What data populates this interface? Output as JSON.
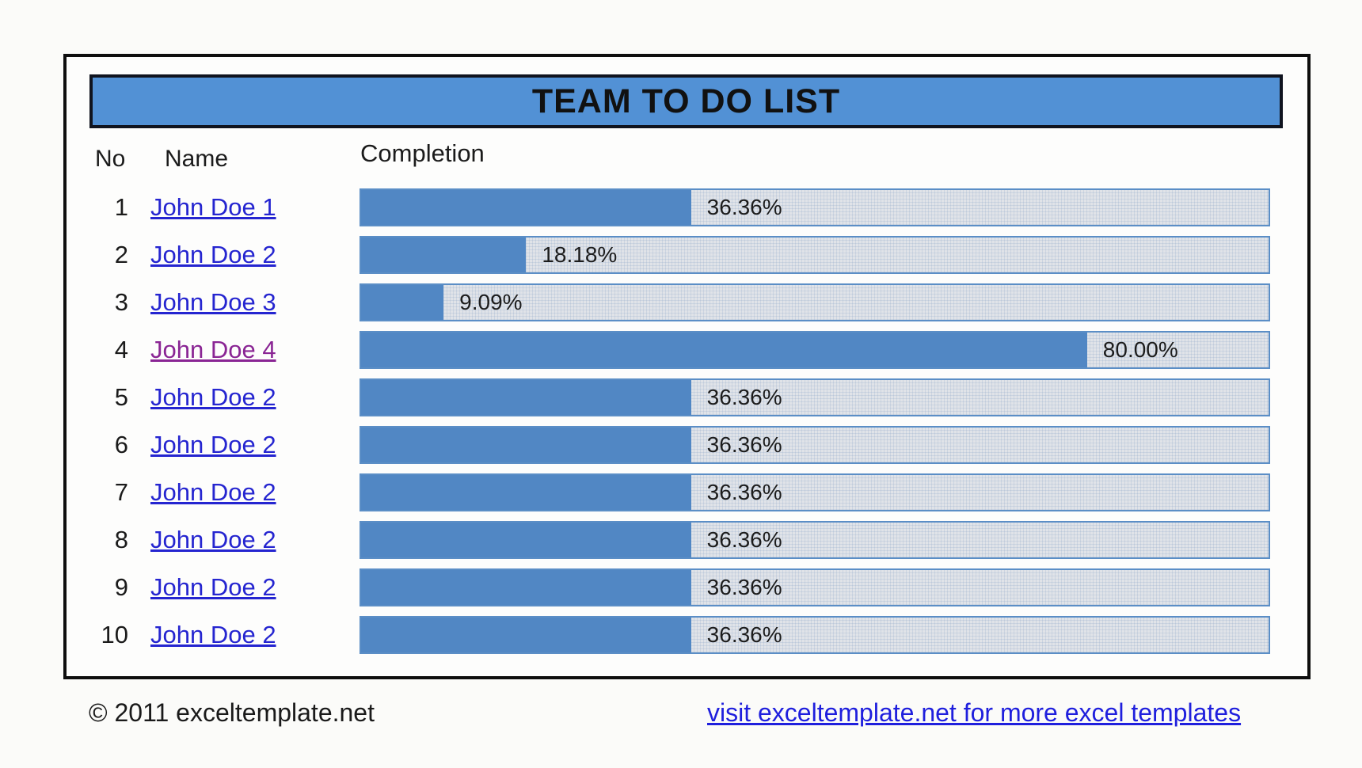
{
  "title": "TEAM TO DO LIST",
  "columns": {
    "no": "No",
    "name": "Name",
    "completion": "Completion"
  },
  "rows": [
    {
      "no": "1",
      "name": "John Doe 1",
      "value": 36.36,
      "pct": "36.36%",
      "visited": false
    },
    {
      "no": "2",
      "name": "John Doe 2",
      "value": 18.18,
      "pct": "18.18%",
      "visited": false
    },
    {
      "no": "3",
      "name": "John Doe 3",
      "value": 9.09,
      "pct": "9.09%",
      "visited": false
    },
    {
      "no": "4",
      "name": "John Doe 4",
      "value": 80.0,
      "pct": "80.00%",
      "visited": true
    },
    {
      "no": "5",
      "name": "John Doe 2",
      "value": 36.36,
      "pct": "36.36%",
      "visited": false
    },
    {
      "no": "6",
      "name": "John Doe 2",
      "value": 36.36,
      "pct": "36.36%",
      "visited": false
    },
    {
      "no": "7",
      "name": "John Doe 2",
      "value": 36.36,
      "pct": "36.36%",
      "visited": false
    },
    {
      "no": "8",
      "name": "John Doe 2",
      "value": 36.36,
      "pct": "36.36%",
      "visited": false
    },
    {
      "no": "9",
      "name": "John Doe 2",
      "value": 36.36,
      "pct": "36.36%",
      "visited": false
    },
    {
      "no": "10",
      "name": "John Doe 2",
      "value": 36.36,
      "pct": "36.36%",
      "visited": false
    }
  ],
  "footer": {
    "copyright": "© 2011 exceltemplate.net",
    "link": "visit exceltemplate.net for more excel templates"
  },
  "colors": {
    "title_bar": "#5291d5",
    "bar_fill": "#5187c4",
    "bar_track": "#e0e3e8",
    "bar_border": "#5b8ec6",
    "link": "#2525d0",
    "visited_link": "#8a2594",
    "footer_link": "#1f1fdd",
    "text": "#1b1b1b"
  },
  "chart_data": {
    "type": "bar",
    "categories": [
      "John Doe 1",
      "John Doe 2",
      "John Doe 3",
      "John Doe 4",
      "John Doe 2",
      "John Doe 2",
      "John Doe 2",
      "John Doe 2",
      "John Doe 2",
      "John Doe 2"
    ],
    "values": [
      36.36,
      18.18,
      9.09,
      80.0,
      36.36,
      36.36,
      36.36,
      36.36,
      36.36,
      36.36
    ],
    "title": "TEAM TO DO LIST",
    "xlabel": "Completion",
    "ylabel": "",
    "xlim": [
      0,
      100
    ],
    "legend": false,
    "grid": false
  }
}
